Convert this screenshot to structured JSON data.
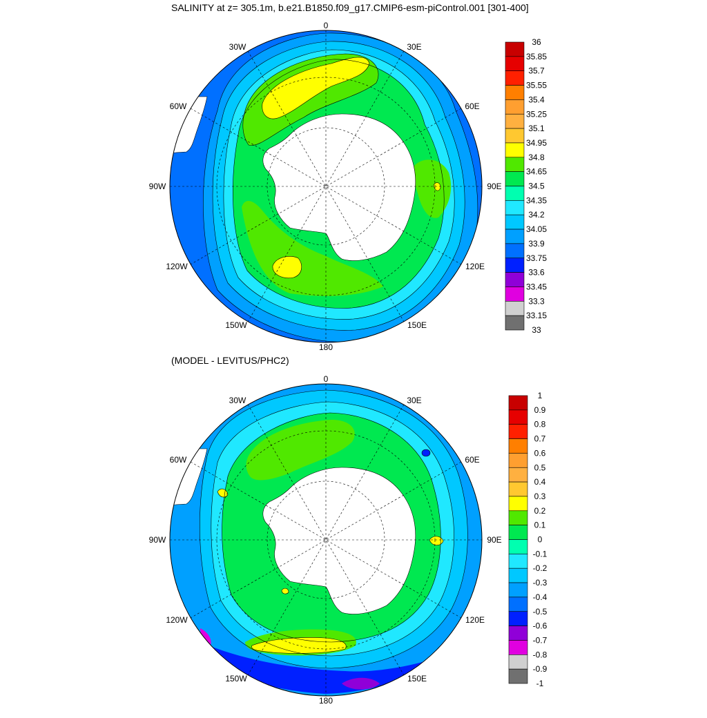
{
  "top_panel": {
    "title": "SALINITY at z= 305.1m, b.e21.B1850.f09_g17.CMIP6-esm-piControl.001 [301-400]",
    "longitude_labels": [
      "0",
      "30E",
      "60E",
      "90E",
      "120E",
      "150E",
      "180",
      "150W",
      "120W",
      "90W",
      "60W",
      "30W"
    ],
    "colorbar": {
      "labels": [
        "36",
        "35.85",
        "35.7",
        "35.55",
        "35.4",
        "35.25",
        "35.1",
        "34.95",
        "34.8",
        "34.65",
        "34.5",
        "34.35",
        "34.2",
        "34.05",
        "33.9",
        "33.75",
        "33.6",
        "33.45",
        "33.3",
        "33.15",
        "33"
      ],
      "colors": [
        "#c80000",
        "#e60000",
        "#ff2000",
        "#ff7f00",
        "#ff9f30",
        "#ffb040",
        "#ffc830",
        "#ffff00",
        "#50e800",
        "#00e850",
        "#00ffb0",
        "#20e8ff",
        "#00c8ff",
        "#00a0ff",
        "#0070ff",
        "#0020ff",
        "#9000d8",
        "#e000e0",
        "#d0d0d0",
        "#707070"
      ]
    }
  },
  "bottom_panel": {
    "title": "(MODEL - LEVITUS/PHC2)",
    "longitude_labels": [
      "0",
      "30E",
      "60E",
      "90E",
      "120E",
      "150E",
      "180",
      "150W",
      "120W",
      "90W",
      "60W",
      "30W"
    ],
    "colorbar": {
      "labels": [
        "1",
        "0.9",
        "0.8",
        "0.7",
        "0.6",
        "0.5",
        "0.4",
        "0.3",
        "0.2",
        "0.1",
        "0",
        "-0.1",
        "-0.2",
        "-0.3",
        "-0.4",
        "-0.5",
        "-0.6",
        "-0.7",
        "-0.8",
        "-0.9",
        "-1"
      ],
      "colors": [
        "#c80000",
        "#e60000",
        "#ff2000",
        "#ff7f00",
        "#ff9f30",
        "#ffb040",
        "#ffc830",
        "#ffff00",
        "#50e800",
        "#00e850",
        "#00ffb0",
        "#20e8ff",
        "#00c8ff",
        "#00a0ff",
        "#0070ff",
        "#0020ff",
        "#9000d8",
        "#e000e0",
        "#d0d0d0",
        "#707070"
      ]
    }
  }
}
